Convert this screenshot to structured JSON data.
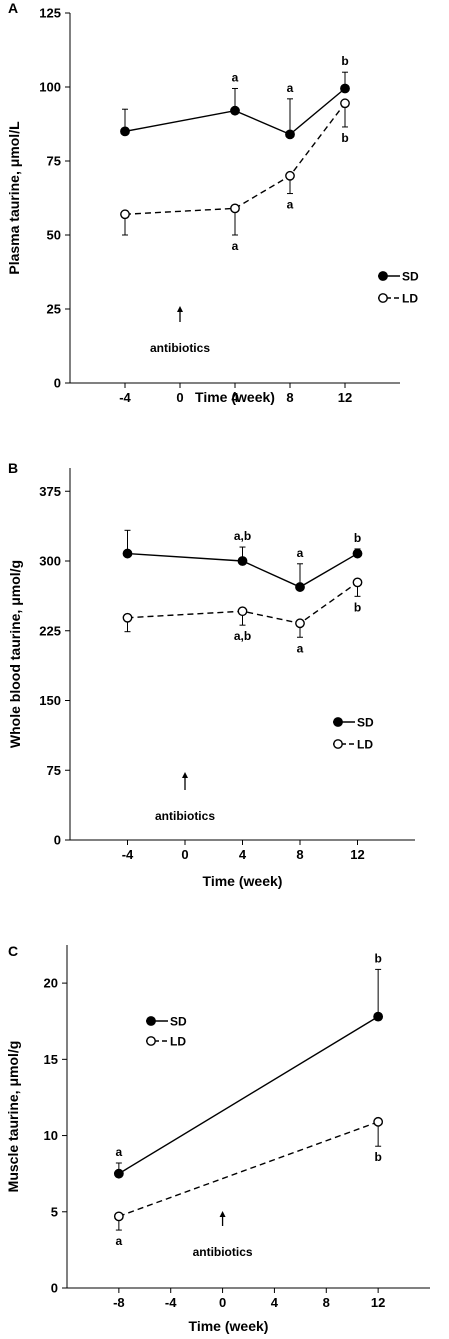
{
  "chart_data": [
    {
      "type": "line",
      "panel": "A",
      "xlabel": "Time (week)",
      "ylabel": "Plasma taurine, μmol/L",
      "xlim": [
        -8,
        16
      ],
      "ylim": [
        0,
        125
      ],
      "xticks": [
        -4,
        0,
        4,
        8,
        12
      ],
      "yticks": [
        0,
        25,
        50,
        75,
        100,
        125
      ],
      "legend": "right-middle",
      "series": [
        {
          "name": "SD",
          "marker": "filled",
          "line": "solid",
          "x": [
            -4,
            4,
            8,
            12
          ],
          "y": [
            85,
            92,
            84,
            99.5
          ],
          "err": [
            7.5,
            7.5,
            12,
            5.5
          ],
          "err_dir": "up"
        },
        {
          "name": "LD",
          "marker": "open",
          "line": "dashed",
          "x": [
            -4,
            4,
            8,
            12
          ],
          "y": [
            57,
            59,
            70,
            94.5
          ],
          "err": [
            7,
            9,
            6,
            8
          ],
          "err_dir": "down"
        }
      ],
      "letters": [
        {
          "x": 4,
          "y": 92,
          "series": "SD",
          "text": "a"
        },
        {
          "x": 8,
          "y": 84,
          "series": "SD",
          "text": "a"
        },
        {
          "x": 12,
          "y": 99.5,
          "series": "SD",
          "text": "b"
        },
        {
          "x": 4,
          "y": 59,
          "series": "LD",
          "text": "a"
        },
        {
          "x": 8,
          "y": 70,
          "series": "LD",
          "text": "a"
        },
        {
          "x": 12,
          "y": 94.5,
          "series": "LD",
          "text": "b"
        }
      ],
      "annotation": {
        "text": "antibiotics",
        "x": 0
      }
    },
    {
      "type": "line",
      "panel": "B",
      "xlabel": "Time (week)",
      "ylabel": "Whole blood taurine, μmol/g",
      "xlim": [
        -8,
        16
      ],
      "ylim": [
        0,
        400
      ],
      "xticks": [
        -4,
        0,
        4,
        8,
        12
      ],
      "yticks": [
        0,
        75,
        150,
        225,
        300,
        375
      ],
      "legend": "right-middle",
      "series": [
        {
          "name": "SD",
          "marker": "filled",
          "line": "solid",
          "x": [
            -4,
            4,
            8,
            12
          ],
          "y": [
            308,
            300,
            272,
            308
          ],
          "err": [
            25,
            15,
            25,
            5
          ],
          "err_dir": "up"
        },
        {
          "name": "LD",
          "marker": "open",
          "line": "dashed",
          "x": [
            -4,
            4,
            8,
            12
          ],
          "y": [
            239,
            246,
            233,
            277
          ],
          "err": [
            15,
            15,
            15,
            15
          ],
          "err_dir": "down"
        }
      ],
      "letters": [
        {
          "x": 4,
          "y": 300,
          "series": "SD",
          "text": "a,b"
        },
        {
          "x": 8,
          "y": 272,
          "series": "SD",
          "text": "a"
        },
        {
          "x": 12,
          "y": 308,
          "series": "SD",
          "text": "b"
        },
        {
          "x": 4,
          "y": 246,
          "series": "LD",
          "text": "a,b"
        },
        {
          "x": 8,
          "y": 233,
          "series": "LD",
          "text": "a"
        },
        {
          "x": 12,
          "y": 277,
          "series": "LD",
          "text": "b"
        }
      ],
      "annotation": {
        "text": "antibiotics",
        "x": 0
      }
    },
    {
      "type": "line",
      "panel": "C",
      "xlabel": "Time (week)",
      "ylabel": "Muscle taurine, μmol/g",
      "xlim": [
        -12,
        16
      ],
      "ylim": [
        0,
        22.5
      ],
      "xticks": [
        -8,
        -4,
        0,
        4,
        8,
        12
      ],
      "yticks": [
        0,
        5,
        10,
        15,
        20
      ],
      "legend": "top-left",
      "series": [
        {
          "name": "SD",
          "marker": "filled",
          "line": "solid",
          "x": [
            -8,
            12
          ],
          "y": [
            7.5,
            17.8
          ],
          "err": [
            0.7,
            3.1
          ],
          "err_dir": "up"
        },
        {
          "name": "LD",
          "marker": "open",
          "line": "dashed",
          "x": [
            -8,
            12
          ],
          "y": [
            4.7,
            10.9
          ],
          "err": [
            0.9,
            1.6
          ],
          "err_dir": "down"
        }
      ],
      "letters": [
        {
          "x": -8,
          "y": 7.5,
          "series": "SD",
          "text": "a"
        },
        {
          "x": 12,
          "y": 17.8,
          "series": "SD",
          "text": "b"
        },
        {
          "x": -8,
          "y": 4.7,
          "series": "LD",
          "text": "a"
        },
        {
          "x": 12,
          "y": 10.9,
          "series": "LD",
          "text": "b"
        }
      ],
      "annotation": {
        "text": "antibiotics",
        "x": 0
      }
    }
  ]
}
